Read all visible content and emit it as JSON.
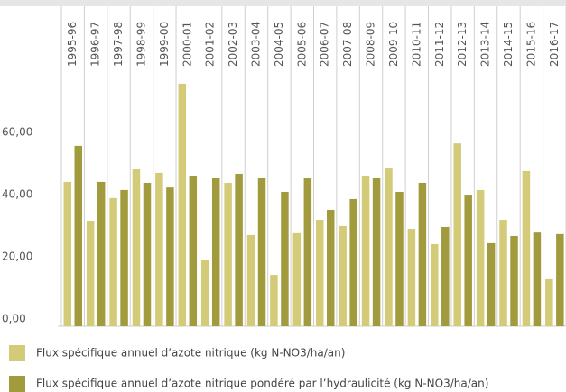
{
  "chart_data": {
    "type": "bar",
    "categories": [
      "1995-96",
      "1996-97",
      "1997-98",
      "1998-99",
      "1999-00",
      "2000-01",
      "2001-02",
      "2002-03",
      "2003-04",
      "2004-05",
      "2005-06",
      "2006-07",
      "2007-08",
      "2008-09",
      "2009-10",
      "2010-11",
      "2011-12",
      "2012-13",
      "2013-14",
      "2014-15",
      "2015-16",
      "2016-17"
    ],
    "series": [
      {
        "name": "Flux spécifique annuel d’azote nitrique (kg N-NO3/ha/an)",
        "color": "#d3cb78",
        "values": [
          46.4,
          33.9,
          41.2,
          50.7,
          49.3,
          78.0,
          21.2,
          46.1,
          29.3,
          16.5,
          29.9,
          34.2,
          32.2,
          48.4,
          51.0,
          31.3,
          26.4,
          58.8,
          43.8,
          34.2,
          49.9,
          15.1
        ]
      },
      {
        "name": "Flux spécifique annuel d’azote nitrique pondéré par l’hydraulicité (kg N-NO3/ha/an)",
        "color": "#a19b3d",
        "values": [
          58.0,
          46.4,
          43.8,
          46.1,
          44.6,
          48.4,
          47.8,
          49.0,
          47.8,
          43.2,
          47.8,
          37.4,
          40.9,
          47.8,
          43.2,
          46.1,
          31.9,
          42.3,
          26.7,
          29.0,
          30.1,
          29.6
        ]
      }
    ],
    "ylim": [
      0,
      80
    ],
    "yticks": [
      {
        "value": 0,
        "label": "0,00"
      },
      {
        "value": 20,
        "label": "20,00"
      },
      {
        "value": 40,
        "label": "40,00"
      },
      {
        "value": 60,
        "label": "60,00"
      }
    ],
    "grid": false
  }
}
